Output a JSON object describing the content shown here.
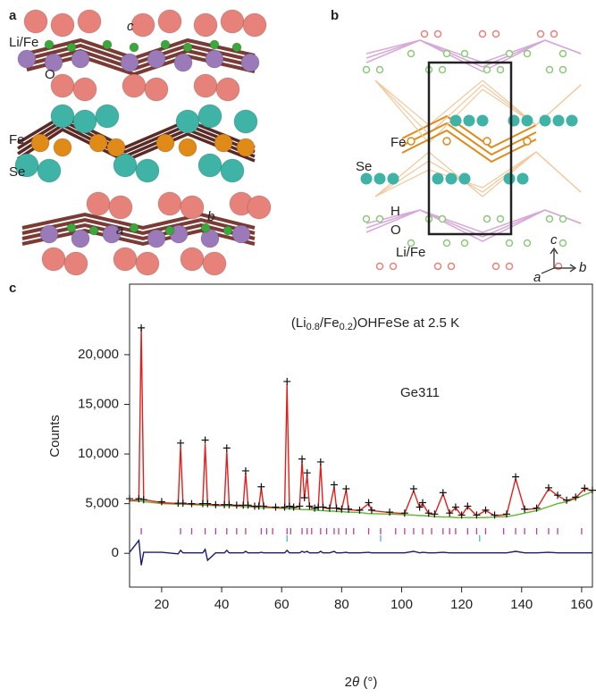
{
  "panels": [
    {
      "label": "a",
      "atom_labels": [
        "Li/Fe",
        "O",
        "Fe",
        "Se"
      ],
      "axis_labels": [
        "c",
        "b",
        "a"
      ]
    },
    {
      "label": "b",
      "atom_labels": [
        "Fe",
        "Se",
        "H",
        "O",
        "Li/Fe"
      ],
      "axis_labels": [
        "c",
        "a",
        "b"
      ]
    },
    {
      "label": "c"
    }
  ],
  "chart_data": {
    "type": "line",
    "title_parts": [
      "(Li",
      "0.8",
      "/Fe",
      "0.2",
      ")OHFeSe at 2.5 K"
    ],
    "annotation": "Ge311",
    "y_label": "Counts",
    "x_label_parts": [
      "2",
      "θ",
      " (°)"
    ],
    "xlim": [
      9.3,
      163.6
    ],
    "xticks": [
      20,
      40,
      60,
      80,
      100,
      120,
      140,
      160
    ],
    "ylim": [
      -3400,
      27100
    ],
    "yticks": [
      0,
      {
        "value": 5000,
        "label": "5,000"
      },
      {
        "value": 10000,
        "label": "10,000"
      },
      {
        "value": 15000,
        "label": "15,000"
      },
      {
        "value": 20000,
        "label": "20,000"
      }
    ],
    "x": [
      9.3,
      12.4,
      13.2,
      14.0,
      20,
      25.5,
      26.3,
      27.1,
      30,
      33.7,
      34.5,
      35.3,
      38,
      40.9,
      41.7,
      42.5,
      45,
      47.2,
      48,
      48.8,
      51,
      52.4,
      53.2,
      54,
      58,
      61,
      61.8,
      62.6,
      64,
      66,
      66.8,
      67.6,
      68.5,
      69.3,
      71,
      72.2,
      73,
      73.8,
      76,
      77.5,
      78.3,
      80,
      81.5,
      82.3,
      86,
      89,
      90,
      96,
      101,
      104,
      106,
      107,
      109,
      111,
      113.8,
      116,
      118,
      120,
      122,
      125,
      128,
      131,
      135,
      138,
      141,
      145,
      149,
      152,
      155,
      158,
      161,
      163.6
    ],
    "series": [
      {
        "style": "markers",
        "color": "#111111",
        "values": [
          5500,
          5500,
          22700,
          5400,
          5200,
          5050,
          11100,
          5050,
          5000,
          5000,
          11400,
          5000,
          4900,
          4900,
          10600,
          4900,
          4850,
          4850,
          8300,
          4850,
          4750,
          4750,
          6700,
          4750,
          4650,
          4650,
          17300,
          4750,
          4650,
          4750,
          9500,
          5600,
          8100,
          4750,
          4550,
          4650,
          9200,
          4650,
          4550,
          6900,
          4550,
          4450,
          6500,
          4450,
          4350,
          5100,
          4350,
          4150,
          4050,
          6500,
          4650,
          5100,
          4050,
          3950,
          6100,
          4050,
          4650,
          3850,
          4750,
          3850,
          4350,
          3850,
          3950,
          7700,
          4450,
          4550,
          6600,
          5850,
          5350,
          5650,
          6550,
          6350
        ]
      },
      {
        "style": "line",
        "color": "#e0201c",
        "values": [
          5300,
          5400,
          22700,
          5400,
          5100,
          5000,
          10800,
          5000,
          4950,
          4950,
          11000,
          4950,
          4850,
          4850,
          10300,
          4850,
          4800,
          4800,
          8100,
          4800,
          4700,
          4700,
          6600,
          4700,
          4600,
          4600,
          17000,
          4700,
          4600,
          4700,
          9300,
          5500,
          7900,
          4700,
          4500,
          4600,
          9000,
          4600,
          4500,
          6700,
          4500,
          4400,
          6400,
          4400,
          4300,
          5000,
          4300,
          4100,
          4000,
          6300,
          4600,
          5000,
          4000,
          3900,
          6000,
          4000,
          4600,
          3800,
          4700,
          3800,
          4300,
          3800,
          3900,
          7500,
          4400,
          4500,
          6500,
          5800,
          5300,
          5600,
          6500,
          6300
        ]
      },
      {
        "style": "line",
        "color": "#5cb82e",
        "values": [
          5300,
          5250,
          5250,
          5200,
          5000,
          4950,
          4950,
          4950,
          4900,
          4850,
          4850,
          4850,
          4800,
          4800,
          4800,
          4800,
          4750,
          4700,
          4700,
          4700,
          4650,
          4600,
          4600,
          4600,
          4550,
          4500,
          4500,
          4500,
          4450,
          4450,
          4400,
          4400,
          4400,
          4400,
          4350,
          4350,
          4300,
          4300,
          4250,
          4250,
          4200,
          4200,
          4150,
          4150,
          4100,
          4000,
          4000,
          3950,
          3900,
          3850,
          3800,
          3800,
          3750,
          3700,
          3650,
          3650,
          3600,
          3600,
          3600,
          3600,
          3600,
          3650,
          3700,
          3850,
          4050,
          4300,
          4700,
          5000,
          5200,
          5500,
          5900,
          6200
        ]
      },
      {
        "style": "line",
        "color": "#1c1c6e",
        "values": [
          100,
          1300,
          -1200,
          100,
          100,
          -50,
          300,
          50,
          50,
          50,
          400,
          -700,
          50,
          50,
          300,
          50,
          50,
          50,
          200,
          50,
          50,
          50,
          100,
          50,
          50,
          50,
          300,
          50,
          50,
          50,
          200,
          100,
          200,
          50,
          50,
          50,
          200,
          50,
          50,
          200,
          50,
          50,
          100,
          50,
          50,
          100,
          50,
          50,
          50,
          200,
          50,
          100,
          50,
          50,
          100,
          50,
          50,
          50,
          50,
          50,
          50,
          50,
          50,
          200,
          50,
          50,
          100,
          50,
          50,
          50,
          50,
          50
        ]
      }
    ],
    "reflections": [
      {
        "color": "#c03c9c",
        "x": [
          13.2,
          26.3,
          30,
          34.5,
          38,
          41.7,
          45,
          48,
          53.2,
          55,
          57,
          61.8,
          63,
          66.8,
          68.5,
          70,
          73,
          75,
          77.5,
          79,
          81.5,
          84,
          89,
          93,
          98,
          101,
          104,
          107,
          110,
          113.8,
          116,
          118,
          122,
          125,
          128,
          134,
          138,
          141,
          145,
          149,
          152,
          160
        ]
      },
      {
        "color": "#4ab0d8",
        "x": [
          61.8,
          93,
          126
        ]
      }
    ]
  }
}
